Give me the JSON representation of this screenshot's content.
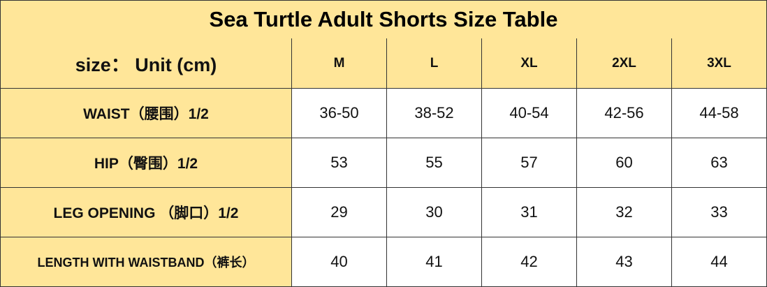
{
  "table": {
    "title": "Sea Turtle Adult Shorts Size Table",
    "header": [
      "size：  Unit (cm)",
      "M",
      "L",
      "XL",
      "2XL",
      "3XL"
    ],
    "rows": [
      [
        "WAIST（腰围）1/2",
        "36-50",
        "38-52",
        "40-54",
        "42-56",
        "44-58"
      ],
      [
        "HIP（臀围）1/2",
        "53",
        "55",
        "57",
        "60",
        "63"
      ],
      [
        "LEG OPENING （脚口）1/2",
        "29",
        "30",
        "31",
        "32",
        "33"
      ],
      [
        "LENGTH WITH WAISTBAND（裤长）",
        "40",
        "41",
        "42",
        "43",
        "44"
      ]
    ]
  }
}
